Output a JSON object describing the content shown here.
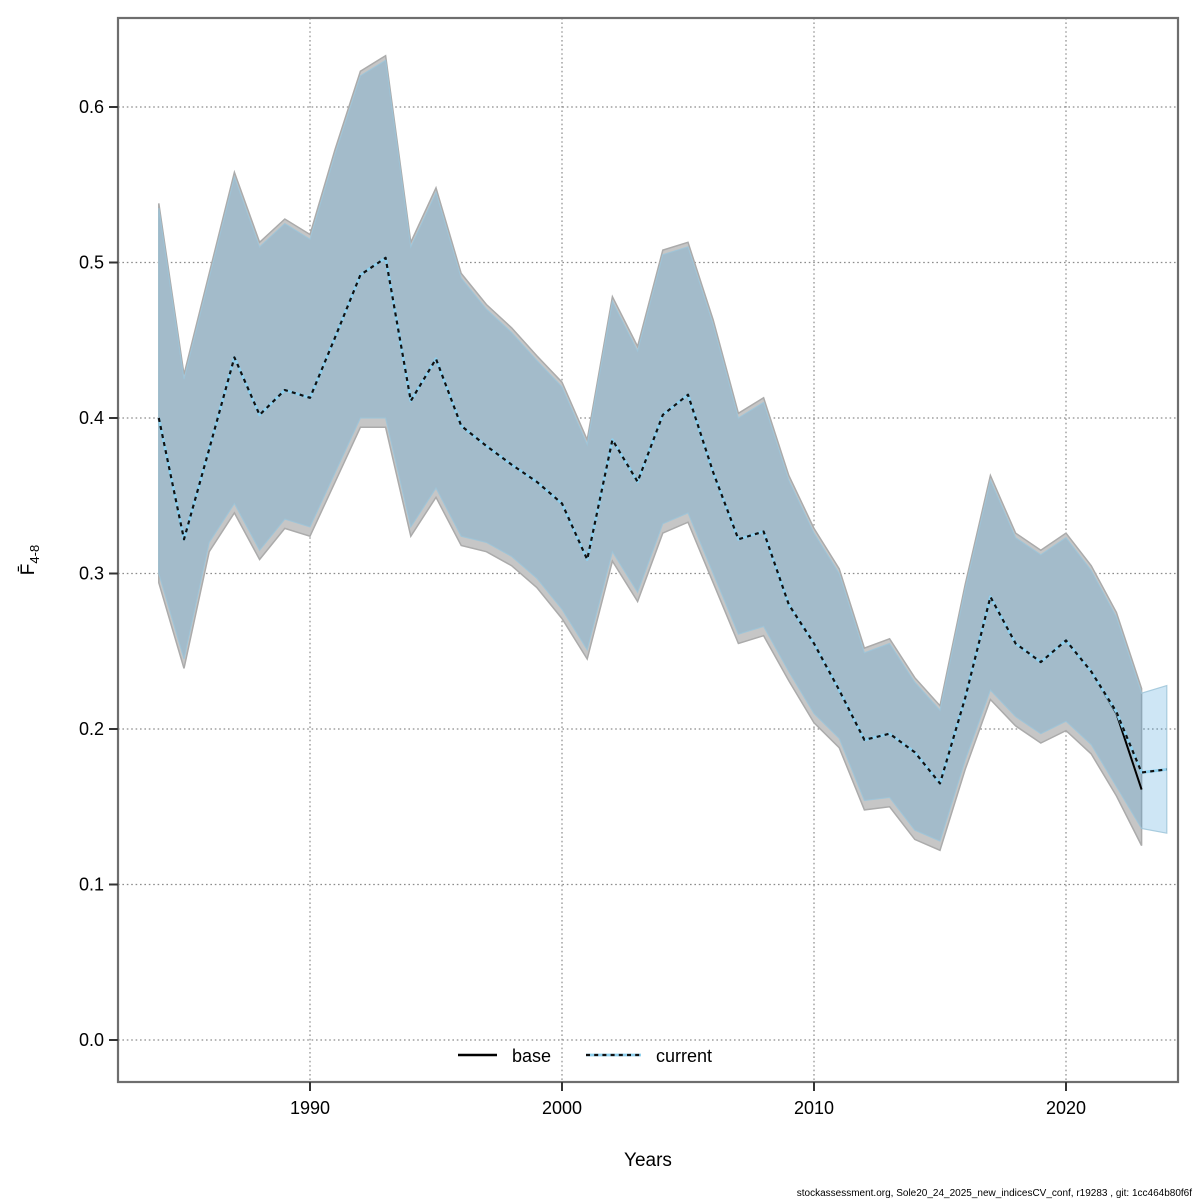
{
  "figure": {
    "x_label": "Years",
    "y_label_main": "F̄",
    "y_label_sub": "4-8",
    "footer": "stockassessment.org, Sole20_24_2025_new_indicesCV_conf, r19283 , git: 1cc464b80f6f"
  },
  "legend": {
    "base_label": "base",
    "current_label": "current"
  },
  "colors": {
    "band_base_fill": "#c6c6c6",
    "band_base_edge": "#ababab",
    "band_current_fill": "#41a0d9",
    "band_current_alpha": 0.26,
    "band_current_edge": "#9ec4d8",
    "line_base": "#000000",
    "line_current_light": "#8fd0ee",
    "line_current_dark": "#111111",
    "grid": "#8c8c8c",
    "frame": "#6e6e6e",
    "tick": "#333333"
  },
  "chart_data": {
    "type": "line",
    "title": "",
    "xlabel": "Years",
    "ylabel": "Fbar 4-8",
    "grid": true,
    "legend_position": "bottom-center",
    "xlim": [
      1982.4,
      2024.5
    ],
    "ylim": [
      -0.027,
      0.658
    ],
    "x_ticks": [
      1990,
      2000,
      2010,
      2020
    ],
    "y_tick_labels": [
      "0.0",
      "0.1",
      "0.2",
      "0.3",
      "0.4",
      "0.5",
      "0.6"
    ],
    "y_tick_values": [
      0.0,
      0.1,
      0.2,
      0.3,
      0.4,
      0.5,
      0.6
    ],
    "years": [
      1984,
      1985,
      1986,
      1987,
      1988,
      1989,
      1990,
      1991,
      1992,
      1993,
      1994,
      1995,
      1996,
      1997,
      1998,
      1999,
      2000,
      2001,
      2002,
      2003,
      2004,
      2005,
      2006,
      2007,
      2008,
      2009,
      2010,
      2011,
      2012,
      2013,
      2014,
      2015,
      2016,
      2017,
      2018,
      2019,
      2020,
      2021,
      2022,
      2023,
      2024
    ],
    "series": [
      {
        "name": "current",
        "style": "dotted-lightblue",
        "years": [
          1984,
          1985,
          1986,
          1987,
          1988,
          1989,
          1990,
          1991,
          1992,
          1993,
          1994,
          1995,
          1996,
          1997,
          1998,
          1999,
          2000,
          2001,
          2002,
          2003,
          2004,
          2005,
          2006,
          2007,
          2008,
          2009,
          2010,
          2011,
          2012,
          2013,
          2014,
          2015,
          2016,
          2017,
          2018,
          2019,
          2020,
          2021,
          2022,
          2023,
          2024
        ],
        "values": [
          0.4,
          0.322,
          0.38,
          0.439,
          0.402,
          0.418,
          0.413,
          0.452,
          0.492,
          0.503,
          0.411,
          0.438,
          0.395,
          0.382,
          0.37,
          0.359,
          0.345,
          0.309,
          0.386,
          0.359,
          0.402,
          0.415,
          0.365,
          0.322,
          0.327,
          0.28,
          0.255,
          0.225,
          0.193,
          0.197,
          0.185,
          0.165,
          0.22,
          0.285,
          0.255,
          0.243,
          0.257,
          0.237,
          0.211,
          0.172,
          0.174
        ],
        "ci_low": [
          0.3,
          0.245,
          0.32,
          0.345,
          0.315,
          0.335,
          0.33,
          0.365,
          0.4,
          0.4,
          0.33,
          0.355,
          0.324,
          0.32,
          0.311,
          0.297,
          0.277,
          0.251,
          0.314,
          0.288,
          0.332,
          0.339,
          0.3,
          0.261,
          0.266,
          0.237,
          0.21,
          0.194,
          0.154,
          0.156,
          0.135,
          0.128,
          0.18,
          0.225,
          0.208,
          0.197,
          0.205,
          0.19,
          0.163,
          0.136,
          0.133
        ],
        "ci_high": [
          0.535,
          0.425,
          0.49,
          0.555,
          0.51,
          0.525,
          0.515,
          0.57,
          0.62,
          0.63,
          0.51,
          0.545,
          0.49,
          0.47,
          0.455,
          0.437,
          0.42,
          0.383,
          0.475,
          0.443,
          0.505,
          0.51,
          0.46,
          0.4,
          0.41,
          0.36,
          0.326,
          0.3,
          0.249,
          0.255,
          0.23,
          0.212,
          0.29,
          0.36,
          0.323,
          0.312,
          0.323,
          0.302,
          0.272,
          0.223,
          0.228
        ]
      },
      {
        "name": "base",
        "style": "solid-black",
        "years": [
          1984,
          1985,
          1986,
          1987,
          1988,
          1989,
          1990,
          1991,
          1992,
          1993,
          1994,
          1995,
          1996,
          1997,
          1998,
          1999,
          2000,
          2001,
          2002,
          2003,
          2004,
          2005,
          2006,
          2007,
          2008,
          2009,
          2010,
          2011,
          2012,
          2013,
          2014,
          2015,
          2016,
          2017,
          2018,
          2019,
          2020,
          2021,
          2022,
          2023
        ],
        "values": [
          0.4,
          0.322,
          0.38,
          0.439,
          0.402,
          0.418,
          0.413,
          0.452,
          0.492,
          0.503,
          0.411,
          0.438,
          0.395,
          0.382,
          0.37,
          0.359,
          0.345,
          0.309,
          0.386,
          0.359,
          0.402,
          0.415,
          0.365,
          0.322,
          0.327,
          0.28,
          0.255,
          0.225,
          0.193,
          0.197,
          0.185,
          0.165,
          0.22,
          0.285,
          0.255,
          0.243,
          0.257,
          0.237,
          0.21,
          0.161
        ],
        "ci_low": [
          0.294,
          0.239,
          0.314,
          0.339,
          0.309,
          0.329,
          0.324,
          0.359,
          0.394,
          0.394,
          0.324,
          0.349,
          0.318,
          0.314,
          0.305,
          0.291,
          0.271,
          0.245,
          0.308,
          0.282,
          0.326,
          0.333,
          0.294,
          0.255,
          0.26,
          0.231,
          0.204,
          0.188,
          0.148,
          0.15,
          0.129,
          0.122,
          0.174,
          0.219,
          0.202,
          0.191,
          0.199,
          0.184,
          0.157,
          0.125
        ],
        "ci_high": [
          0.538,
          0.428,
          0.493,
          0.558,
          0.513,
          0.528,
          0.518,
          0.573,
          0.623,
          0.633,
          0.513,
          0.548,
          0.493,
          0.473,
          0.458,
          0.44,
          0.423,
          0.386,
          0.478,
          0.446,
          0.508,
          0.513,
          0.463,
          0.403,
          0.413,
          0.363,
          0.329,
          0.303,
          0.252,
          0.258,
          0.233,
          0.215,
          0.293,
          0.363,
          0.326,
          0.315,
          0.326,
          0.305,
          0.275,
          0.226
        ]
      }
    ]
  }
}
